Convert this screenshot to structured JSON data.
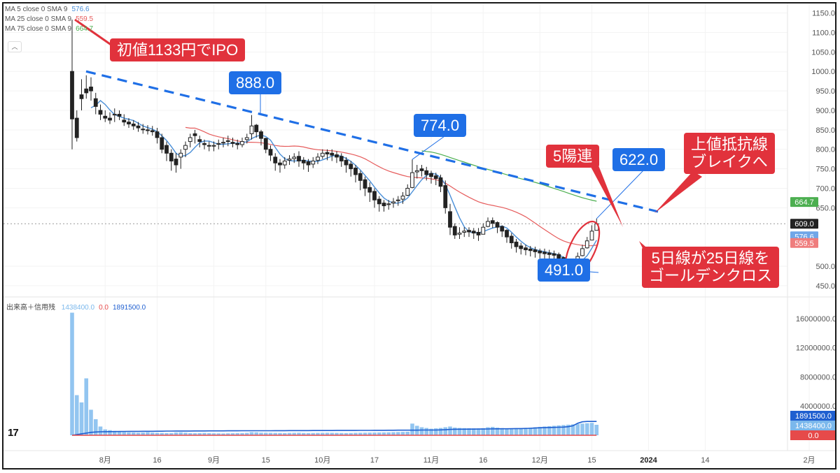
{
  "legend": [
    {
      "label": "MA 5 close 0 SMA 9",
      "value": "576.6",
      "color": "#4a8fd8"
    },
    {
      "label": "MA 25 close 0 SMA 9",
      "value": "559.5",
      "color": "#e65c5c"
    },
    {
      "label": "MA 75 close 0 SMA 9",
      "value": "664.7",
      "color": "#4caf50"
    }
  ],
  "volume_legend": {
    "label": "出来高＋信用残",
    "values": [
      {
        "text": "1438400.0",
        "color": "#7bb8ec"
      },
      {
        "text": "0.0",
        "color": "#e64a4a"
      },
      {
        "text": "1891500.0",
        "color": "#1f5fd0"
      }
    ]
  },
  "price_axis_badges": [
    {
      "text": "664.7",
      "value": 664.7,
      "bg": "#4caf50"
    },
    {
      "text": "609.0",
      "value": 609.0,
      "bg": "#222222"
    },
    {
      "text": "576.6",
      "value": 576.6,
      "bg": "#6fa6e8"
    },
    {
      "text": "559.5",
      "value": 559.5,
      "bg": "#ef7d7d"
    }
  ],
  "volume_axis_badges": [
    {
      "text": "1891500.0",
      "value": 1891500,
      "bg": "#1f5fd0"
    },
    {
      "text": "1438400.0",
      "value": 1438400,
      "bg": "#7bb8ec"
    },
    {
      "text": "0.0",
      "value": 0,
      "bg": "#e64a4a"
    }
  ],
  "callouts": {
    "ipo": "初値1133円でIPO",
    "high1": "888.0",
    "high2": "774.0",
    "high3": "622.0",
    "low": "491.0",
    "five_up": "5陽連",
    "resistance": "上値抵抗線\nブレイクへ",
    "golden_cross": "5日線が25日線を\nゴールデンクロス"
  },
  "chart_data": {
    "type": "candlestick",
    "price_axis": {
      "ticks": [
        1150,
        1100,
        1050,
        1000,
        950,
        900,
        850,
        800,
        750,
        700,
        650,
        500,
        450
      ],
      "tick_labels": [
        "1150.0",
        "1100.0",
        "1050.0",
        "1000.0",
        "950.0",
        "900.0",
        "850.0",
        "800.0",
        "750.0",
        "700.0",
        "650.0",
        "500.0",
        "450.0"
      ],
      "range": [
        430,
        1160
      ]
    },
    "volume_axis": {
      "ticks": [
        16000000,
        12000000,
        8000000,
        4000000
      ],
      "tick_labels": [
        "16000000.0",
        "12000000.0",
        "8000000.0",
        "4000000.0"
      ],
      "range": [
        0,
        18000000
      ]
    },
    "x_labels": [
      {
        "text": "8月",
        "idx": 7
      },
      {
        "text": "16",
        "idx": 18
      },
      {
        "text": "9月",
        "idx": 30
      },
      {
        "text": "15",
        "idx": 41
      },
      {
        "text": "10月",
        "idx": 53
      },
      {
        "text": "17",
        "idx": 64
      },
      {
        "text": "11月",
        "idx": 76
      },
      {
        "text": "16",
        "idx": 87
      },
      {
        "text": "12月",
        "idx": 99
      },
      {
        "text": "15",
        "idx": 110
      },
      {
        "text": "2024",
        "idx": 122
      },
      {
        "text": "14",
        "idx": 134
      },
      {
        "text": "2月",
        "idx": 156
      }
    ],
    "close": [
      878,
      830,
      930,
      945,
      950,
      910,
      890,
      880,
      875,
      890,
      885,
      870,
      865,
      860,
      855,
      850,
      848,
      845,
      830,
      800,
      790,
      770,
      760,
      790,
      810,
      830,
      835,
      820,
      812,
      808,
      810,
      815,
      818,
      820,
      815,
      812,
      820,
      830,
      860,
      845,
      828,
      800,
      785,
      765,
      760,
      770,
      775,
      780,
      770,
      765,
      760,
      770,
      780,
      790,
      788,
      785,
      780,
      770,
      760,
      750,
      735,
      720,
      700,
      690,
      670,
      660,
      655,
      660,
      665,
      670,
      680,
      700,
      740,
      745,
      745,
      735,
      730,
      725,
      705,
      650,
      600,
      580,
      585,
      590,
      588,
      585,
      580,
      600,
      615,
      610,
      600,
      590,
      575,
      560,
      550,
      545,
      542,
      540,
      537,
      534,
      532,
      530,
      528,
      520,
      505,
      495,
      505,
      525,
      545,
      565,
      590,
      609
    ],
    "open": [
      1000,
      880,
      940,
      955,
      960,
      930,
      900,
      885,
      880,
      888,
      890,
      875,
      870,
      865,
      860,
      852,
      850,
      848,
      845,
      830,
      810,
      790,
      775,
      780,
      800,
      820,
      840,
      825,
      815,
      810,
      808,
      813,
      816,
      822,
      818,
      815,
      812,
      825,
      840,
      862,
      845,
      828,
      800,
      780,
      765,
      760,
      772,
      776,
      782,
      772,
      768,
      762,
      772,
      782,
      792,
      790,
      786,
      782,
      772,
      762,
      752,
      738,
      722,
      702,
      692,
      672,
      662,
      658,
      662,
      668,
      672,
      682,
      702,
      742,
      750,
      745,
      738,
      732,
      727,
      707,
      640,
      602,
      582,
      587,
      592,
      590,
      587,
      582,
      602,
      617,
      612,
      602,
      592,
      577,
      562,
      552,
      547,
      544,
      542,
      539,
      536,
      534,
      532,
      530,
      522,
      507,
      497,
      507,
      527,
      547,
      567,
      592
    ],
    "high": [
      1133,
      900,
      980,
      990,
      985,
      945,
      915,
      900,
      895,
      905,
      900,
      890,
      880,
      875,
      870,
      865,
      862,
      860,
      855,
      840,
      820,
      800,
      790,
      800,
      820,
      840,
      850,
      835,
      825,
      820,
      820,
      825,
      830,
      835,
      830,
      825,
      830,
      840,
      888,
      865,
      850,
      830,
      810,
      790,
      775,
      780,
      785,
      790,
      795,
      780,
      775,
      780,
      790,
      800,
      800,
      800,
      795,
      790,
      780,
      770,
      760,
      745,
      730,
      715,
      700,
      680,
      670,
      670,
      675,
      680,
      690,
      710,
      774,
      760,
      760,
      755,
      745,
      740,
      735,
      720,
      660,
      610,
      600,
      600,
      600,
      598,
      598,
      610,
      625,
      625,
      615,
      605,
      595,
      585,
      570,
      560,
      555,
      552,
      550,
      545,
      545,
      542,
      540,
      535,
      525,
      510,
      515,
      535,
      555,
      575,
      605,
      622
    ],
    "low": [
      800,
      820,
      900,
      930,
      925,
      890,
      875,
      870,
      865,
      870,
      875,
      860,
      855,
      850,
      845,
      840,
      838,
      835,
      815,
      790,
      770,
      745,
      740,
      750,
      780,
      805,
      815,
      805,
      800,
      795,
      795,
      800,
      805,
      808,
      805,
      800,
      805,
      815,
      825,
      830,
      810,
      790,
      770,
      745,
      740,
      750,
      760,
      765,
      755,
      748,
      742,
      752,
      762,
      775,
      772,
      770,
      765,
      755,
      740,
      730,
      715,
      695,
      680,
      665,
      650,
      640,
      640,
      645,
      650,
      655,
      660,
      680,
      700,
      725,
      730,
      720,
      712,
      708,
      690,
      635,
      580,
      570,
      570,
      575,
      575,
      570,
      565,
      585,
      600,
      598,
      585,
      575,
      560,
      545,
      535,
      530,
      528,
      525,
      522,
      520,
      518,
      515,
      512,
      505,
      492,
      491,
      495,
      505,
      525,
      545,
      570,
      595
    ],
    "volume": [
      16800000,
      5500000,
      4500000,
      7800000,
      3500000,
      2200000,
      1200000,
      800000,
      700000,
      600000,
      500000,
      450000,
      400000,
      380000,
      350000,
      380000,
      420000,
      360000,
      340000,
      320000,
      300000,
      310000,
      380000,
      400000,
      350000,
      300000,
      280000,
      300000,
      320000,
      290000,
      270000,
      260000,
      250000,
      270000,
      280000,
      290000,
      300000,
      320000,
      420000,
      400000,
      350000,
      340000,
      330000,
      320000,
      310000,
      300000,
      320000,
      330000,
      340000,
      310000,
      300000,
      310000,
      320000,
      330000,
      340000,
      330000,
      320000,
      310000,
      300000,
      310000,
      330000,
      340000,
      350000,
      360000,
      370000,
      380000,
      390000,
      400000,
      420000,
      440000,
      460000,
      480000,
      1600000,
      1300000,
      1100000,
      1000000,
      900000,
      950000,
      1000000,
      1100000,
      1200000,
      1050000,
      1000000,
      980000,
      960000,
      950000,
      940000,
      980000,
      1100000,
      1150000,
      1050000,
      980000,
      950000,
      940000,
      960000,
      980000,
      1000000,
      1050000,
      1100000,
      1150000,
      1200000,
      1250000,
      1300000,
      1350000,
      1400000,
      1450000,
      1500000,
      1550000,
      1600000,
      1650000,
      1700000,
      1438400
    ],
    "credit_balance": [
      0,
      100000,
      200000,
      300000,
      400000,
      450000,
      480000,
      490000,
      500000,
      510000,
      520000,
      530000,
      540000,
      540000,
      540000,
      550000,
      550000,
      550000,
      560000,
      560000,
      570000,
      570000,
      580000,
      580000,
      580000,
      580000,
      590000,
      590000,
      590000,
      600000,
      600000,
      600000,
      600000,
      610000,
      610000,
      610000,
      620000,
      620000,
      620000,
      620000,
      620000,
      620000,
      620000,
      630000,
      630000,
      630000,
      640000,
      640000,
      640000,
      640000,
      640000,
      650000,
      650000,
      650000,
      650000,
      650000,
      660000,
      660000,
      660000,
      660000,
      660000,
      670000,
      670000,
      670000,
      680000,
      680000,
      680000,
      690000,
      690000,
      700000,
      700000,
      700000,
      700000,
      700000,
      720000,
      720000,
      720000,
      720000,
      740000,
      760000,
      800000,
      820000,
      830000,
      830000,
      840000,
      840000,
      850000,
      850000,
      860000,
      880000,
      880000,
      890000,
      890000,
      900000,
      920000,
      920000,
      940000,
      960000,
      1000000,
      1020000,
      1040000,
      1060000,
      1080000,
      1100000,
      1120000,
      1180000,
      1300000,
      1650000,
      1850000,
      1891500,
      1891500,
      1891500
    ],
    "sell_balance": [
      0
    ]
  }
}
